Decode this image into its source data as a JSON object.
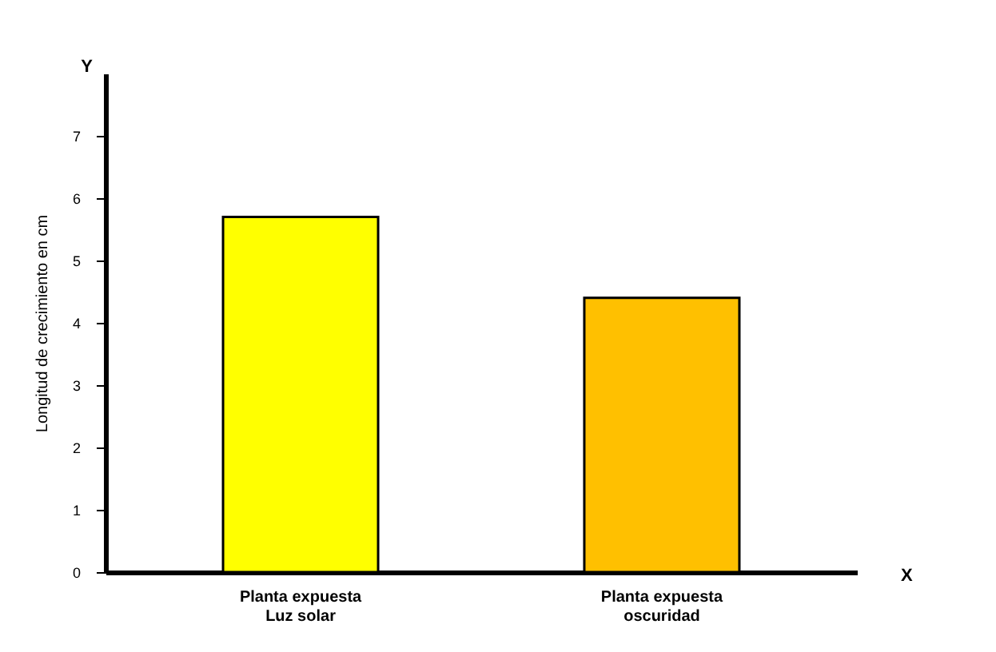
{
  "chart_data": {
    "type": "bar",
    "categories": [
      "Planta expuesta\nLuz solar",
      "Planta expuesta\noscuridad"
    ],
    "values": [
      5.7,
      4.4
    ],
    "colors": [
      "#ffff00",
      "#ffc000"
    ],
    "xlabel": "X",
    "ylabel": "Longitud de crecimiento en cm",
    "annotations": [
      "Y"
    ],
    "ylim": [
      0,
      8
    ],
    "yticks": [
      0,
      1,
      2,
      3,
      4,
      5,
      6,
      7
    ],
    "grid": false
  }
}
